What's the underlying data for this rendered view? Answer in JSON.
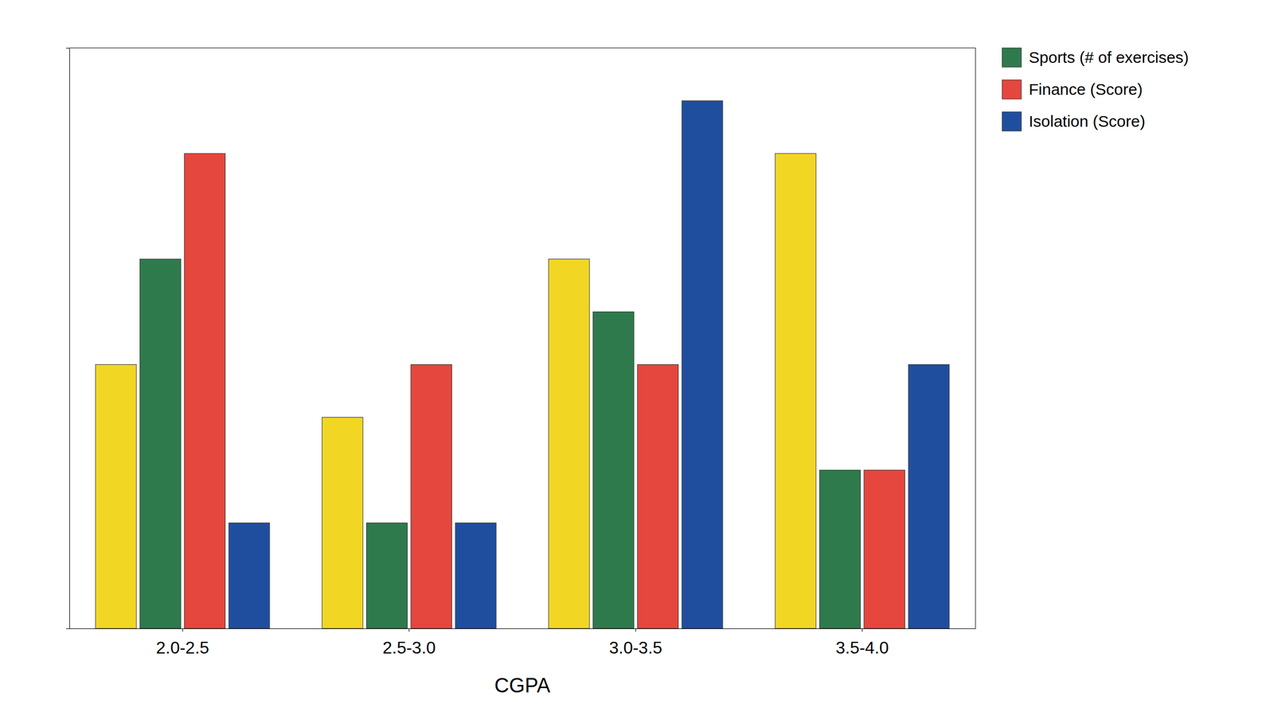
{
  "chart_data": {
    "type": "bar",
    "x_label": "CGPA",
    "categories": [
      "2.0-2.5",
      "2.5-3.0",
      "3.0-3.5",
      "3.5-4.0"
    ],
    "series": [
      {
        "color": "#f2d624",
        "values": [
          5,
          4,
          7,
          9
        ]
      },
      {
        "name": "Sports (# of exercises)",
        "color": "#2e7a4c",
        "values": [
          7,
          2,
          6,
          3
        ]
      },
      {
        "name": "Finance (Score)",
        "color": "#e5463d",
        "values": [
          9,
          5,
          5,
          3
        ]
      },
      {
        "name": "Isolation (Score)",
        "color": "#1f4e9e",
        "values": [
          2,
          2,
          10,
          5
        ]
      }
    ],
    "ylim": [
      0,
      11
    ],
    "tick_labels": "x",
    "grid": false,
    "legend": "upper right"
  }
}
